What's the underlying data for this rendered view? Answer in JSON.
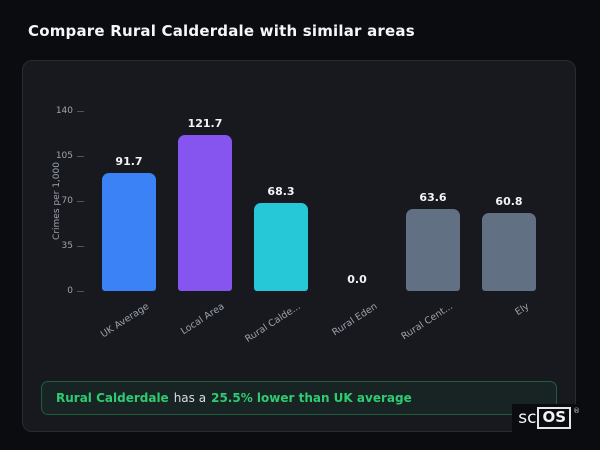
{
  "title": "Compare Rural Calderdale with similar areas",
  "chart_data": {
    "type": "bar",
    "categories": [
      "UK Average",
      "Local Area",
      "Rural Calde...",
      "Rural Eden",
      "Rural Cent...",
      "Ely"
    ],
    "values": [
      91.7,
      121.7,
      68.3,
      0.0,
      63.6,
      60.8
    ],
    "value_labels": [
      "91.7",
      "121.7",
      "68.3",
      "0.0",
      "63.6",
      "60.8"
    ],
    "bar_colors": [
      "#3b82f6",
      "#8655f0",
      "#26c8d8",
      "#627083",
      "#627083",
      "#627083"
    ],
    "title": "",
    "xlabel": "",
    "ylabel": "Crimes per 1,000",
    "yticks": [
      "0",
      "35",
      "70",
      "105",
      "140"
    ],
    "ytick_values": [
      0,
      35,
      70,
      105,
      140
    ],
    "ylim": [
      0,
      140
    ],
    "grid": false,
    "legend": "none"
  },
  "summary": {
    "area": "Rural Calderdale",
    "connector": "has a",
    "stat": "25.5% lower than UK average"
  },
  "logo": {
    "prefix": "sc",
    "boxed": "OS",
    "registered": "®"
  }
}
